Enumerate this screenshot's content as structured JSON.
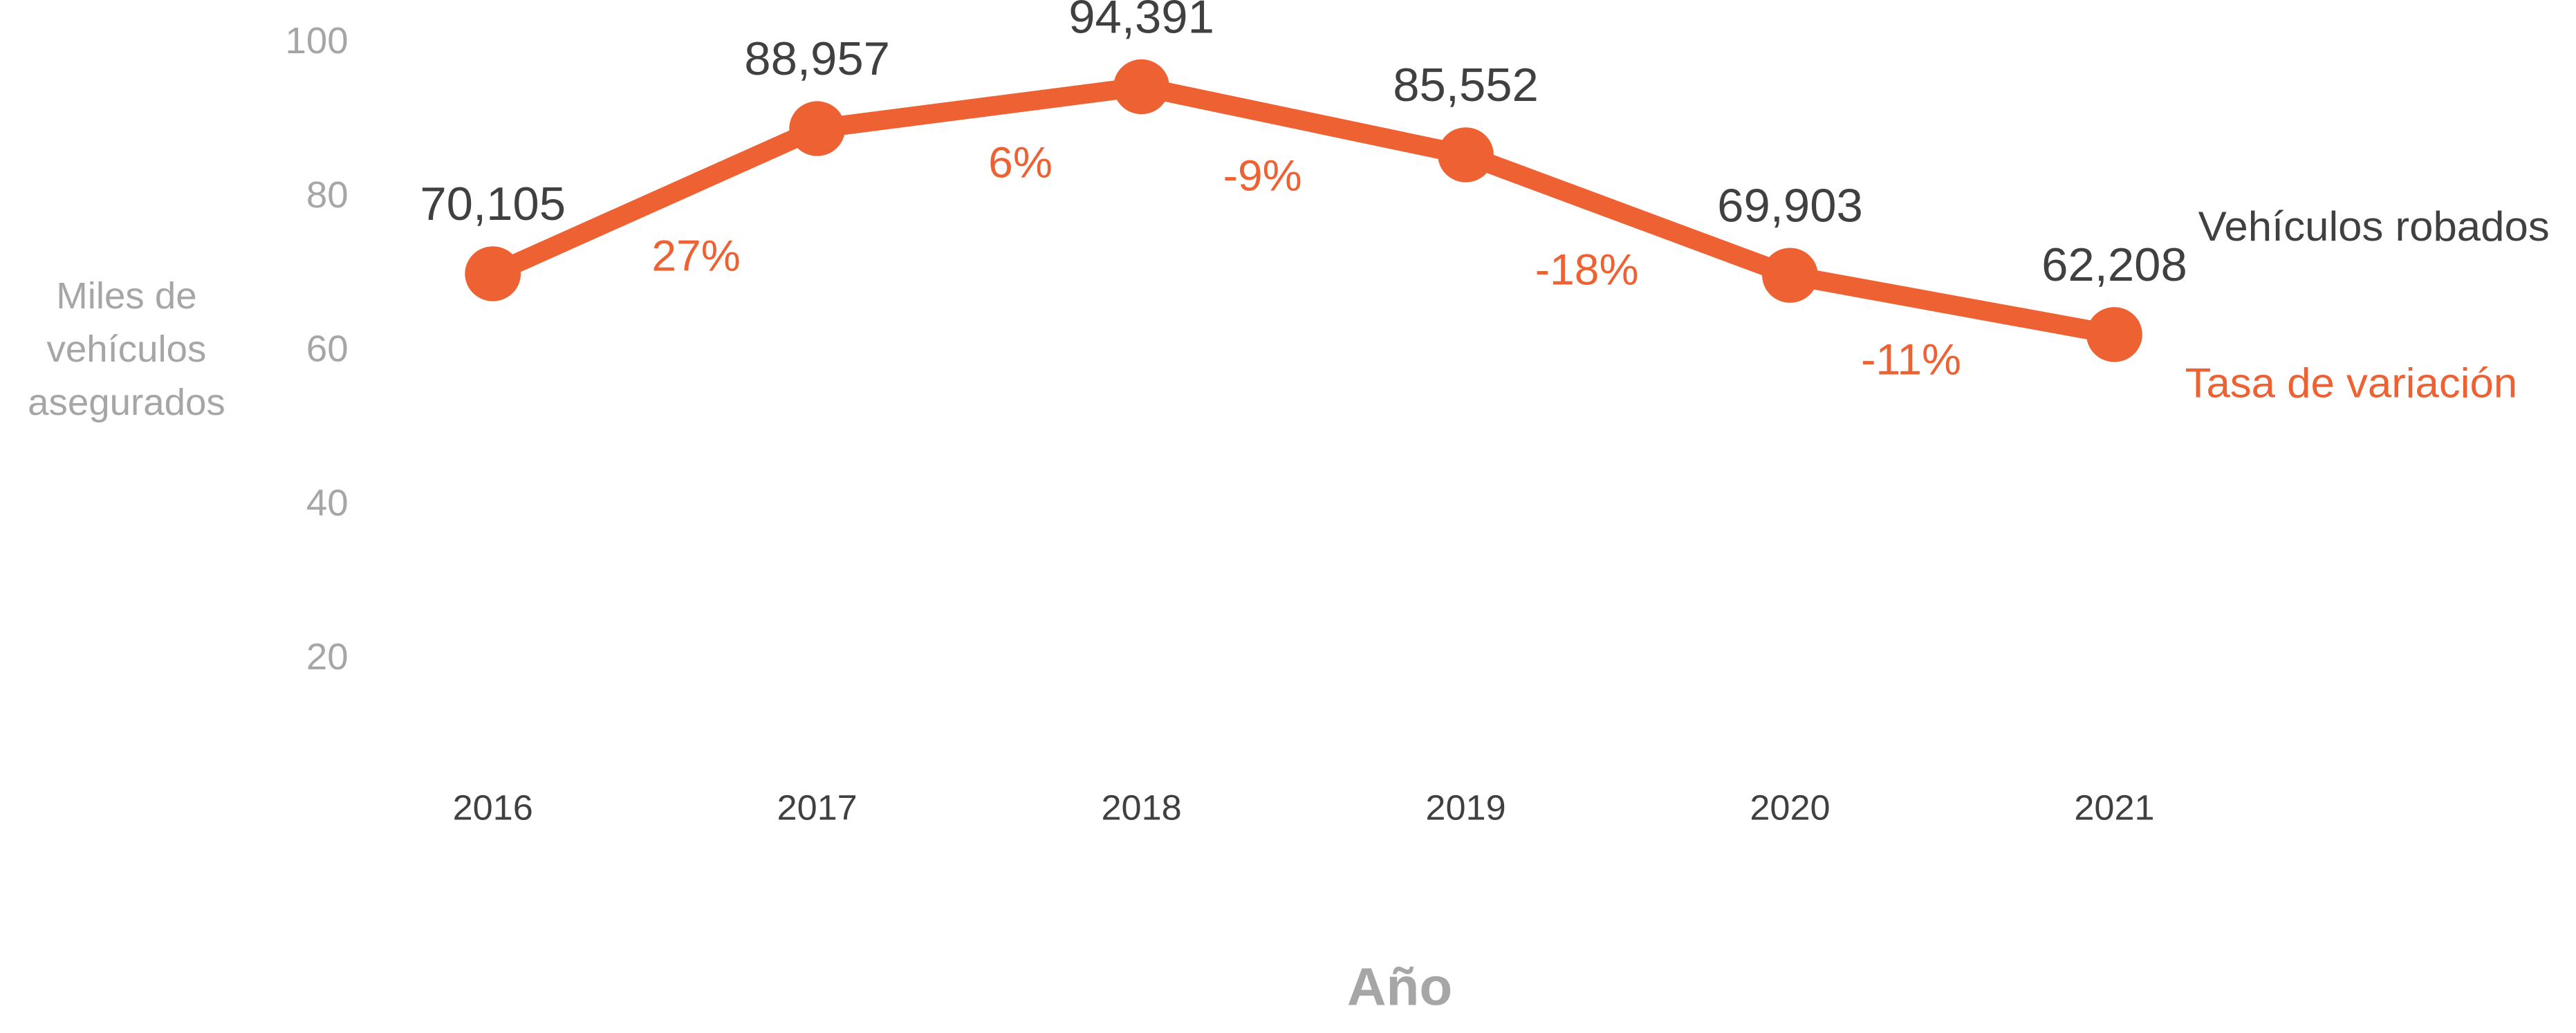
{
  "chart_data": {
    "type": "line",
    "xlabel": "Año",
    "ylabel": [
      "Miles de",
      "vehículos",
      "asegurados"
    ],
    "categories": [
      "2016",
      "2017",
      "2018",
      "2019",
      "2020",
      "2021"
    ],
    "series": [
      {
        "name": "Vehículos robados",
        "color": "#ed6132",
        "values": [
          70.105,
          88.957,
          94.391,
          85.552,
          69.903,
          62.208
        ],
        "value_labels": [
          "70,105",
          "88,957",
          "94,391",
          "85,552",
          "69,903",
          "62,208"
        ]
      }
    ],
    "rate_legend": "Tasa de variación",
    "rate_labels": [
      "27%",
      "6%",
      "-9%",
      "-18%",
      "-11%"
    ],
    "rate_color": "#ed6132",
    "ylim": [
      0,
      100
    ],
    "yticks": [
      20,
      40,
      60,
      80,
      100
    ],
    "grid": false
  }
}
